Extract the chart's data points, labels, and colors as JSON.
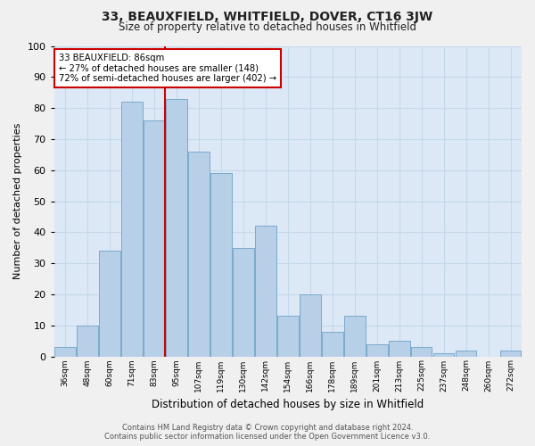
{
  "title": "33, BEAUXFIELD, WHITFIELD, DOVER, CT16 3JW",
  "subtitle": "Size of property relative to detached houses in Whitfield",
  "xlabel": "Distribution of detached houses by size in Whitfield",
  "ylabel": "Number of detached properties",
  "bin_labels": [
    "36sqm",
    "48sqm",
    "60sqm",
    "71sqm",
    "83sqm",
    "95sqm",
    "107sqm",
    "119sqm",
    "130sqm",
    "142sqm",
    "154sqm",
    "166sqm",
    "178sqm",
    "189sqm",
    "201sqm",
    "213sqm",
    "225sqm",
    "237sqm",
    "248sqm",
    "260sqm",
    "272sqm"
  ],
  "bar_values": [
    3,
    10,
    34,
    82,
    76,
    83,
    66,
    59,
    35,
    42,
    13,
    20,
    8,
    13,
    4,
    5,
    3,
    1,
    2,
    0,
    2
  ],
  "bar_color": "#b8cfe8",
  "bar_edge_color": "#7aaacf",
  "vline_color": "#cc0000",
  "annotation_text": "33 BEAUXFIELD: 86sqm\n← 27% of detached houses are smaller (148)\n72% of semi-detached houses are larger (402) →",
  "annotation_box_color": "#ffffff",
  "annotation_border_color": "#cc0000",
  "ylim": [
    0,
    100
  ],
  "yticks": [
    0,
    10,
    20,
    30,
    40,
    50,
    60,
    70,
    80,
    90,
    100
  ],
  "grid_color": "#c5d8ea",
  "background_color": "#dce8f5",
  "fig_background": "#f0f0f0",
  "footer_line1": "Contains HM Land Registry data © Crown copyright and database right 2024.",
  "footer_line2": "Contains public sector information licensed under the Open Government Licence v3.0."
}
